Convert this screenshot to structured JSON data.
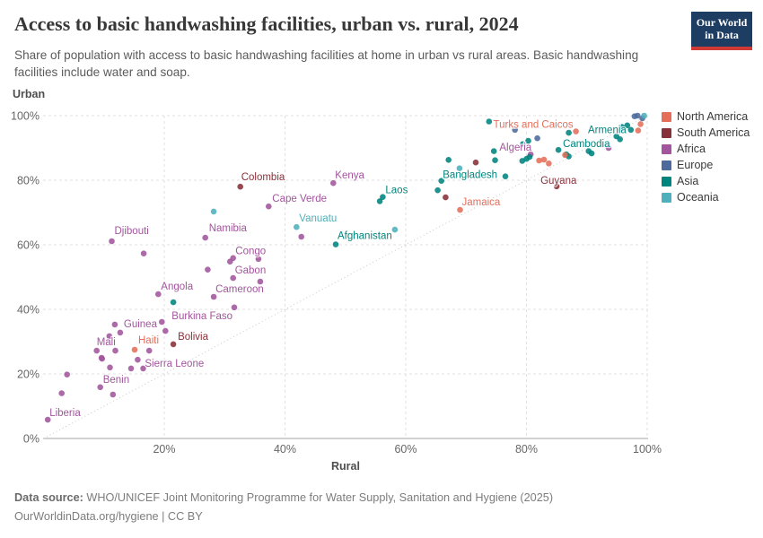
{
  "header": {
    "title": "Access to basic handwashing facilities, urban vs. rural, 2024",
    "subtitle": "Share of population with access to basic handwashing facilities at home in urban vs rural areas. Basic handwashing facilities include water and soap.",
    "logo_line1": "Our World",
    "logo_line2": "in Data",
    "logo_bg": "#1d3d63",
    "logo_accent": "#cf3a34"
  },
  "chart_data": {
    "type": "scatter",
    "xlabel": "Rural",
    "ylabel": "Urban",
    "x_range": [
      0,
      102
    ],
    "y_range": [
      0,
      102
    ],
    "x_ticks": [
      20,
      40,
      60,
      80,
      100
    ],
    "y_ticks": [
      0,
      20,
      40,
      60,
      80,
      100
    ],
    "tick_suffix": "%",
    "grid": "dashed",
    "parity_line": true,
    "legend_position": "right",
    "legend": [
      {
        "label": "North America",
        "color": "#e56e5a"
      },
      {
        "label": "South America",
        "color": "#883039"
      },
      {
        "label": "Africa",
        "color": "#a2559c"
      },
      {
        "label": "Europe",
        "color": "#4c6a9c"
      },
      {
        "label": "Asia",
        "color": "#00847e"
      },
      {
        "label": "Oceania",
        "color": "#4eb0bc"
      }
    ],
    "series": [
      {
        "name": "Africa",
        "color": "#a2559c",
        "points": [
          {
            "x": 0.7,
            "y": 5.8,
            "label": "Liberia",
            "dx": 2,
            "dy": -4,
            "anchor": "start"
          },
          {
            "x": 3,
            "y": 14
          },
          {
            "x": 3.9,
            "y": 19.8
          },
          {
            "x": 9.4,
            "y": 15.9,
            "label": "Benin",
            "dx": 3,
            "dy": -5,
            "anchor": "start"
          },
          {
            "x": 11.5,
            "y": 13.6
          },
          {
            "x": 8.8,
            "y": 27.2,
            "label": "Mali",
            "dx": 0,
            "dy": -6,
            "anchor": "start"
          },
          {
            "x": 9.6,
            "y": 25
          },
          {
            "x": 10.9,
            "y": 31.7
          },
          {
            "x": 11.9,
            "y": 27.2
          },
          {
            "x": 9.7,
            "y": 24.7
          },
          {
            "x": 11.8,
            "y": 35.3,
            "label": "Guinea",
            "dx": 10,
            "dy": 3,
            "anchor": "start"
          },
          {
            "x": 12.7,
            "y": 32.8
          },
          {
            "x": 11,
            "y": 22
          },
          {
            "x": 15.6,
            "y": 24.4,
            "label": "Sierra Leone",
            "dx": 8,
            "dy": 8,
            "anchor": "start"
          },
          {
            "x": 14.5,
            "y": 21.7
          },
          {
            "x": 16.5,
            "y": 21.7
          },
          {
            "x": 17.5,
            "y": 27.2
          },
          {
            "x": 16.6,
            "y": 57.3
          },
          {
            "x": 19.6,
            "y": 36.1,
            "label": "Burkina Faso",
            "dx": 11,
            "dy": -3,
            "anchor": "start"
          },
          {
            "x": 20.2,
            "y": 33.3
          },
          {
            "x": 19,
            "y": 44.7,
            "label": "Angola",
            "dx": 3,
            "dy": -5,
            "anchor": "start"
          },
          {
            "x": 11.3,
            "y": 61.1,
            "label": "Djibouti",
            "dx": 3,
            "dy": -8,
            "anchor": "start"
          },
          {
            "x": 26.8,
            "y": 62.2,
            "label": "Namibia",
            "dx": 4,
            "dy": -7,
            "anchor": "start"
          },
          {
            "x": 27.2,
            "y": 52.3
          },
          {
            "x": 30.9,
            "y": 54.8,
            "label": "Congo",
            "dx": 6,
            "dy": -8,
            "anchor": "start"
          },
          {
            "x": 31.4,
            "y": 55.9
          },
          {
            "x": 35.6,
            "y": 55.6
          },
          {
            "x": 31.4,
            "y": 49.7,
            "label": "Gabon",
            "dx": 2,
            "dy": -5,
            "anchor": "start"
          },
          {
            "x": 35.9,
            "y": 48.6
          },
          {
            "x": 28.2,
            "y": 43.9,
            "label": "Cameroon",
            "dx": 2,
            "dy": -5,
            "anchor": "start"
          },
          {
            "x": 31.6,
            "y": 40.6
          },
          {
            "x": 37.3,
            "y": 71.9,
            "label": "Cape Verde",
            "dx": 4,
            "dy": -5,
            "anchor": "start"
          },
          {
            "x": 48,
            "y": 79.1,
            "label": "Kenya",
            "dx": 2,
            "dy": -5,
            "anchor": "start"
          },
          {
            "x": 42.7,
            "y": 62.5
          },
          {
            "x": 80.7,
            "y": 88,
            "label": "Algeria",
            "dx": 1,
            "dy": -4,
            "anchor": "end"
          },
          {
            "x": 93.6,
            "y": 90
          }
        ]
      },
      {
        "name": "Asia",
        "color": "#00847e",
        "points": [
          {
            "x": 21.5,
            "y": 42.2
          },
          {
            "x": 48.4,
            "y": 60.1,
            "label": "Afghanistan",
            "dx": 2,
            "dy": -6,
            "anchor": "start"
          },
          {
            "x": 55.7,
            "y": 73.5
          },
          {
            "x": 56.2,
            "y": 74.8,
            "label": "Laos",
            "dx": 3,
            "dy": -4,
            "anchor": "start"
          },
          {
            "x": 76.5,
            "y": 81.2,
            "label": "Bangladesh",
            "dx": -9,
            "dy": 2,
            "anchor": "end"
          },
          {
            "x": 67.1,
            "y": 86.3
          },
          {
            "x": 65.9,
            "y": 79.8
          },
          {
            "x": 65.3,
            "y": 76.9
          },
          {
            "x": 85.3,
            "y": 89.4,
            "label": "Cambodia",
            "dx": 5,
            "dy": -3,
            "anchor": "start"
          },
          {
            "x": 74.8,
            "y": 86.2
          },
          {
            "x": 74.6,
            "y": 89
          },
          {
            "x": 73.8,
            "y": 98.2
          },
          {
            "x": 79.3,
            "y": 86
          },
          {
            "x": 80,
            "y": 86.6
          },
          {
            "x": 80.5,
            "y": 87.2
          },
          {
            "x": 79.4,
            "y": 91.2
          },
          {
            "x": 80.3,
            "y": 92.2
          },
          {
            "x": 87,
            "y": 94.7
          },
          {
            "x": 95.8,
            "y": 96.5,
            "label": "Armenia",
            "dx": 5,
            "dy": 7,
            "anchor": "end"
          },
          {
            "x": 97.3,
            "y": 95.6
          },
          {
            "x": 94.9,
            "y": 93.6
          },
          {
            "x": 95.5,
            "y": 92.7
          },
          {
            "x": 90.3,
            "y": 89
          },
          {
            "x": 90.8,
            "y": 88.3
          },
          {
            "x": 86.6,
            "y": 88
          },
          {
            "x": 87,
            "y": 87.4
          },
          {
            "x": 96.7,
            "y": 97
          }
        ]
      },
      {
        "name": "North America",
        "color": "#e56e5a",
        "points": [
          {
            "x": 15.1,
            "y": 27.5,
            "label": "Haiti",
            "dx": 4,
            "dy": -7,
            "anchor": "start"
          },
          {
            "x": 69,
            "y": 70.8,
            "label": "Jamaica",
            "dx": 2,
            "dy": -5,
            "anchor": "start"
          },
          {
            "x": 88.2,
            "y": 95.1,
            "label": "Turks and Caicos",
            "dx": -3,
            "dy": -4,
            "anchor": "end"
          },
          {
            "x": 82.1,
            "y": 86.1
          },
          {
            "x": 82.9,
            "y": 86.4
          },
          {
            "x": 83.7,
            "y": 85.2
          },
          {
            "x": 86.4,
            "y": 87.8
          },
          {
            "x": 98.9,
            "y": 97.4
          },
          {
            "x": 98.5,
            "y": 95.4
          }
        ]
      },
      {
        "name": "South America",
        "color": "#883039",
        "points": [
          {
            "x": 21.5,
            "y": 29.2,
            "label": "Bolivia",
            "dx": 5,
            "dy": -5,
            "anchor": "start"
          },
          {
            "x": 32.6,
            "y": 78,
            "label": "Colombia",
            "dx": 1,
            "dy": -7,
            "anchor": "start"
          },
          {
            "x": 85,
            "y": 78.1,
            "label": "Guyana",
            "dx": -18,
            "dy": -3,
            "anchor": "start"
          },
          {
            "x": 66.6,
            "y": 74.7
          },
          {
            "x": 71.6,
            "y": 85.5
          }
        ]
      },
      {
        "name": "Europe",
        "color": "#4c6a9c",
        "points": [
          {
            "x": 78.1,
            "y": 95.6
          },
          {
            "x": 81.8,
            "y": 93
          },
          {
            "x": 97.9,
            "y": 99.8
          },
          {
            "x": 98.4,
            "y": 100
          },
          {
            "x": 99.2,
            "y": 99.2
          }
        ]
      },
      {
        "name": "Oceania",
        "color": "#4eb0bc",
        "points": [
          {
            "x": 28.2,
            "y": 70.3
          },
          {
            "x": 41.9,
            "y": 65.5,
            "label": "Vanuatu",
            "dx": 3,
            "dy": -6,
            "anchor": "start"
          },
          {
            "x": 58.2,
            "y": 64.7
          },
          {
            "x": 68.9,
            "y": 83.7
          },
          {
            "x": 99.5,
            "y": 100
          }
        ]
      }
    ]
  },
  "footer": {
    "source_label": "Data source:",
    "source": " WHO/UNICEF Joint Monitoring Programme for Water Supply, Sanitation and Hygiene (2025)",
    "license": "OurWorldinData.org/hygiene | CC BY"
  }
}
